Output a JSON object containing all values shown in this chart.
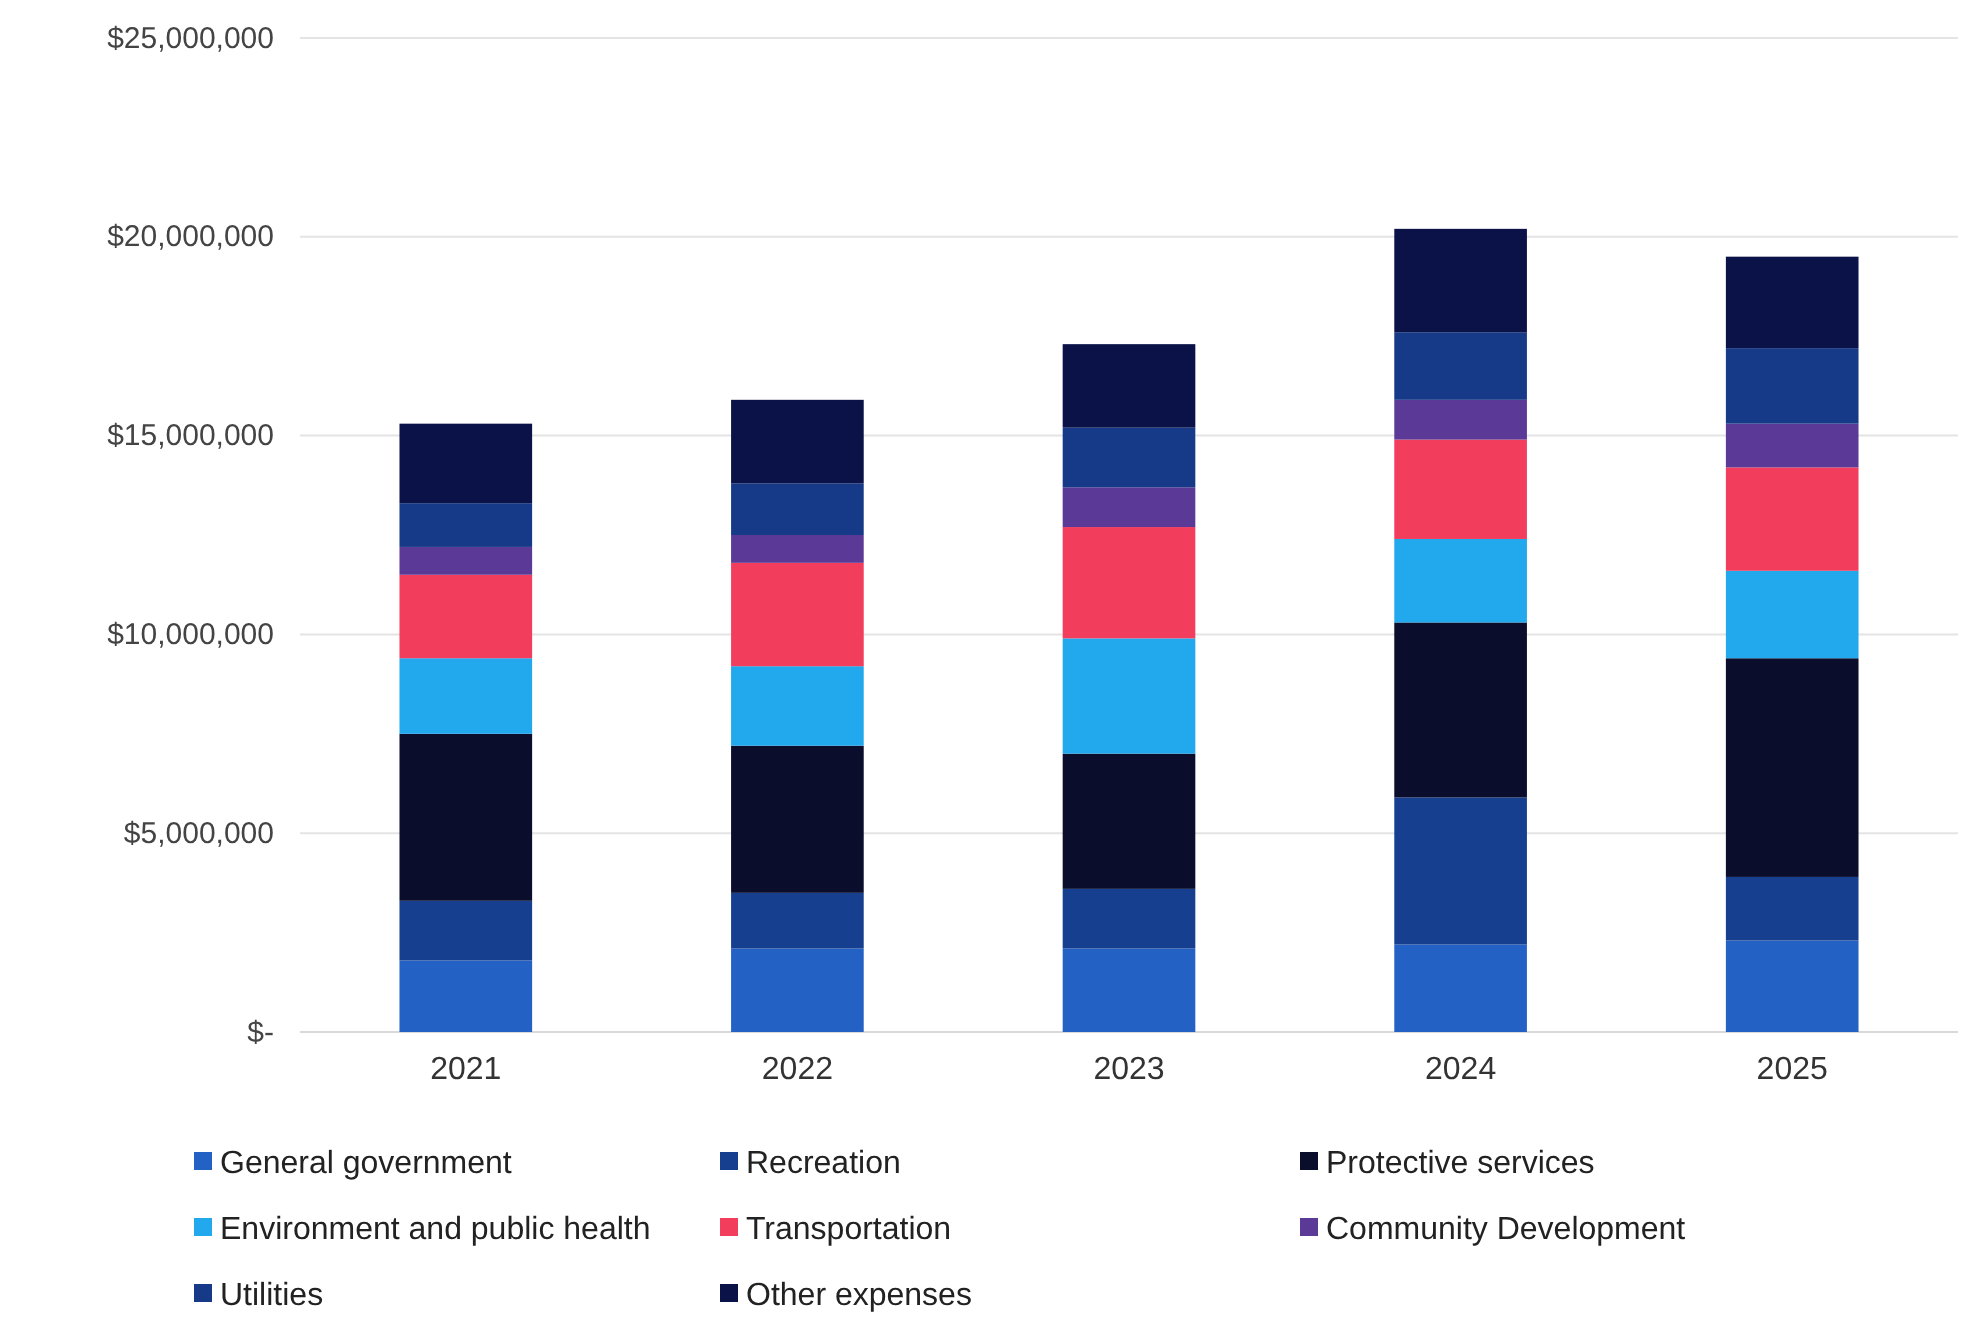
{
  "chart_data": {
    "type": "bar",
    "stacked": true,
    "categories": [
      "2021",
      "2022",
      "2023",
      "2024",
      "2025"
    ],
    "series": [
      {
        "name": "General government",
        "color": "#2461c4",
        "values": [
          1800000,
          2100000,
          2100000,
          2200000,
          2300000
        ]
      },
      {
        "name": "Recreation",
        "color": "#173f8f",
        "values": [
          1500000,
          1400000,
          1500000,
          3700000,
          1600000
        ]
      },
      {
        "name": "Protective services",
        "color": "#0a0e2c",
        "values": [
          4200000,
          3700000,
          3400000,
          4400000,
          5500000
        ]
      },
      {
        "name": "Environment and public health",
        "color": "#22a8ec",
        "values": [
          1900000,
          2000000,
          2900000,
          2100000,
          2200000
        ]
      },
      {
        "name": "Transportation",
        "color": "#f23d5c",
        "values": [
          2100000,
          2600000,
          2800000,
          2500000,
          2600000
        ]
      },
      {
        "name": "Community Development",
        "color": "#5a3a96",
        "values": [
          700000,
          700000,
          1000000,
          1000000,
          1100000
        ]
      },
      {
        "name": "Utilities",
        "color": "#173a88",
        "values": [
          1100000,
          1300000,
          1500000,
          1700000,
          1900000
        ]
      },
      {
        "name": "Other expenses",
        "color": "#0b1247",
        "values": [
          2000000,
          2100000,
          2100000,
          2600000,
          2300000
        ]
      }
    ],
    "ylim": [
      0,
      25000000
    ],
    "yticks": [
      {
        "value": 0,
        "label": "$-"
      },
      {
        "value": 5000000,
        "label": "$5,000,000"
      },
      {
        "value": 10000000,
        "label": "$10,000,000"
      },
      {
        "value": 15000000,
        "label": "$15,000,000"
      },
      {
        "value": 20000000,
        "label": "$20,000,000"
      },
      {
        "value": 25000000,
        "label": "$25,000,000"
      }
    ],
    "grid": "y",
    "legend": "bottom"
  }
}
